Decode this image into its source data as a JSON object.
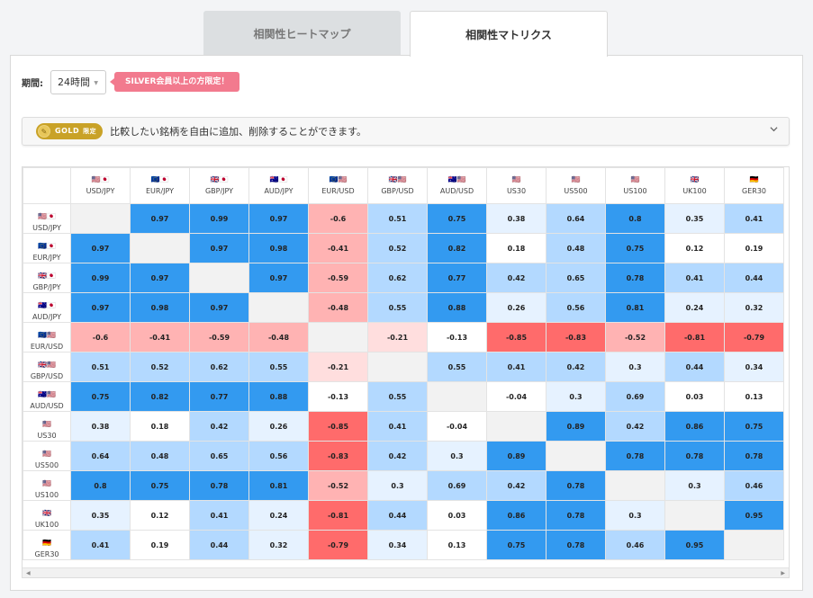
{
  "tabs": [
    {
      "label": "相関性ヒートマップ",
      "active": false
    },
    {
      "label": "相関性マトリクス",
      "active": true
    }
  ],
  "period": {
    "label": "期間:",
    "selected": "24時間",
    "notice": "SILVER会員以上の方限定！"
  },
  "gold_bar": {
    "badge": "GOLD",
    "badge_suffix": "限定",
    "description": "比較したい銘柄を自由に追加、削除することができます。"
  },
  "colors": {
    "strong_pos": "#339af0",
    "mid_pos": "#b3d9ff",
    "weak_pos": "#e6f2ff",
    "neutral": "#ffffff",
    "weak_neg": "#ffdede",
    "mid_neg": "#ffb3b3",
    "strong_neg": "#ff6b6b",
    "diag": "#f2f2f2"
  },
  "matrix": {
    "symbols": [
      {
        "label": "USD/JPY",
        "flag": "🇺🇸🇯🇵"
      },
      {
        "label": "EUR/JPY",
        "flag": "🇪🇺🇯🇵"
      },
      {
        "label": "GBP/JPY",
        "flag": "🇬🇧🇯🇵"
      },
      {
        "label": "AUD/JPY",
        "flag": "🇦🇺🇯🇵"
      },
      {
        "label": "EUR/USD",
        "flag": "🇪🇺🇺🇸"
      },
      {
        "label": "GBP/USD",
        "flag": "🇬🇧🇺🇸"
      },
      {
        "label": "AUD/USD",
        "flag": "🇦🇺🇺🇸"
      },
      {
        "label": "US30",
        "flag": "🇺🇸"
      },
      {
        "label": "US500",
        "flag": "🇺🇸"
      },
      {
        "label": "US100",
        "flag": "🇺🇸"
      },
      {
        "label": "UK100",
        "flag": "🇬🇧"
      },
      {
        "label": "GER30",
        "flag": "🇩🇪"
      }
    ],
    "values": [
      [
        null,
        0.97,
        0.99,
        0.97,
        -0.6,
        0.51,
        0.75,
        0.38,
        0.64,
        0.8,
        0.35,
        0.41
      ],
      [
        0.97,
        null,
        0.97,
        0.98,
        -0.41,
        0.52,
        0.82,
        0.18,
        0.48,
        0.75,
        0.12,
        0.19
      ],
      [
        0.99,
        0.97,
        null,
        0.97,
        -0.59,
        0.62,
        0.77,
        0.42,
        0.65,
        0.78,
        0.41,
        0.44
      ],
      [
        0.97,
        0.98,
        0.97,
        null,
        -0.48,
        0.55,
        0.88,
        0.26,
        0.56,
        0.81,
        0.24,
        0.32
      ],
      [
        -0.6,
        -0.41,
        -0.59,
        -0.48,
        null,
        -0.21,
        -0.13,
        -0.85,
        -0.83,
        -0.52,
        -0.81,
        -0.79
      ],
      [
        0.51,
        0.52,
        0.62,
        0.55,
        -0.21,
        null,
        0.55,
        0.41,
        0.42,
        0.3,
        0.44,
        0.34
      ],
      [
        0.75,
        0.82,
        0.77,
        0.88,
        -0.13,
        0.55,
        null,
        -0.04,
        0.3,
        0.69,
        0.03,
        0.13
      ],
      [
        0.38,
        0.18,
        0.42,
        0.26,
        -0.85,
        0.41,
        -0.04,
        null,
        0.89,
        0.42,
        0.86,
        0.75
      ],
      [
        0.64,
        0.48,
        0.65,
        0.56,
        -0.83,
        0.42,
        0.3,
        0.89,
        null,
        0.78,
        0.78,
        0.78
      ],
      [
        0.8,
        0.75,
        0.78,
        0.81,
        -0.52,
        0.3,
        0.69,
        0.42,
        0.78,
        null,
        0.3,
        0.46
      ],
      [
        0.35,
        0.12,
        0.41,
        0.24,
        -0.81,
        0.44,
        0.03,
        0.86,
        0.78,
        0.3,
        null,
        0.95
      ],
      [
        0.41,
        0.19,
        0.44,
        0.32,
        -0.79,
        0.34,
        0.13,
        0.75,
        0.78,
        0.46,
        0.95,
        null
      ]
    ]
  }
}
